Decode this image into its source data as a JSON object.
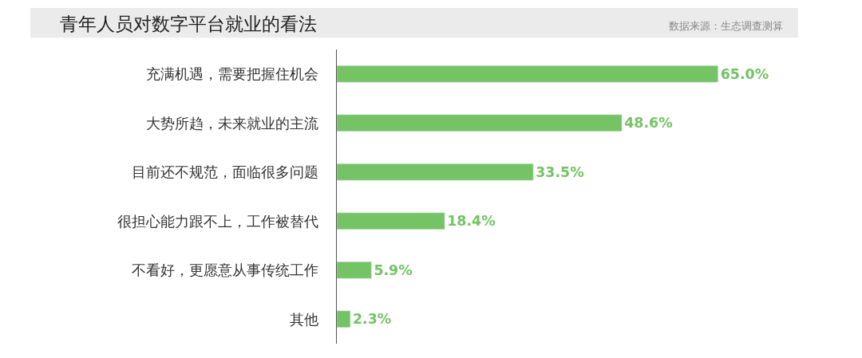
{
  "chart_data": {
    "type": "bar",
    "orientation": "horizontal",
    "title": "青年人员对数字平台就业的看法",
    "annotations": [
      "数据来源：生态调查测算"
    ],
    "categories": [
      "充满机遇，需要把握住机会",
      "大势所趋，未来就业的主流",
      "目前还不规范，面临很多问题",
      "很担心能力跟不上，工作被替代",
      "不看好，更愿意从事传统工作",
      "其他"
    ],
    "values": [
      65.0,
      48.6,
      33.5,
      18.4,
      5.9,
      2.3
    ],
    "value_labels": [
      "65.0%",
      "48.6%",
      "33.5%",
      "18.4%",
      "5.9%",
      "2.3%"
    ],
    "color": "#74c365"
  }
}
